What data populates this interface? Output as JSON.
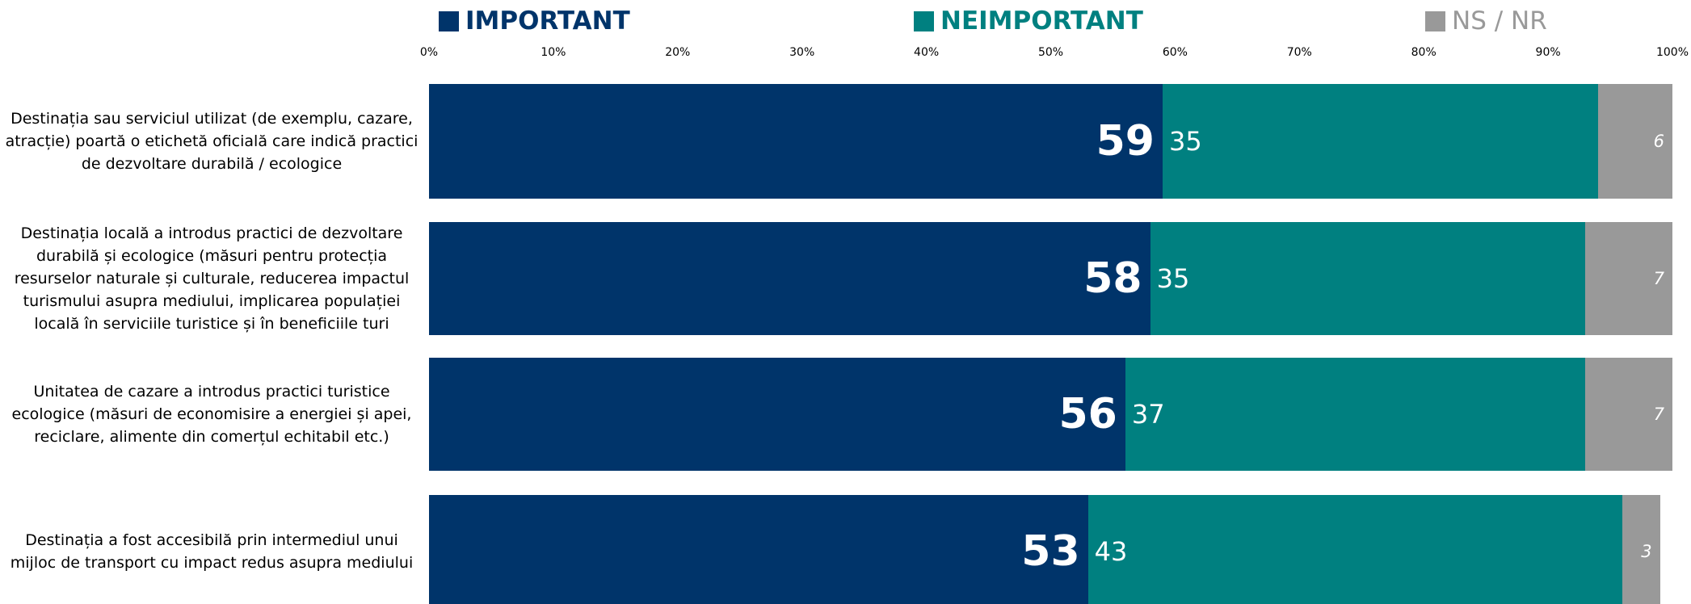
{
  "chart_data": {
    "type": "stacked-bar-horizontal",
    "categories": [
      "Destinația sau serviciul utilizat (de exemplu, cazare, atracție) poartă o etichetă oficială care indică practici de dezvoltare durabilă / ecologice",
      "Destinația locală a introdus practici de dezvoltare durabilă și ecologice (măsuri pentru protecția resurselor naturale și culturale, reducerea impactul turismului asupra mediului, implicarea populației locală în serviciile turistice și în beneficiile turi",
      "Unitatea de cazare a introdus practici turistice ecologice (măsuri de economisire a energiei și apei, reciclare, alimente din comerțul echitabil etc.)",
      "Destinația a fost accesibilă prin intermediul unui mijloc de transport cu impact redus asupra mediului"
    ],
    "series": [
      {
        "name": "IMPORTANT",
        "color": "#00346a",
        "values": [
          59,
          58,
          56,
          53
        ]
      },
      {
        "name": "NEIMPORTANT",
        "color": "#008080",
        "values": [
          35,
          35,
          37,
          43
        ]
      },
      {
        "name": "NS / NR",
        "color": "#999999",
        "values": [
          6,
          7,
          7,
          3
        ]
      }
    ],
    "xlim": [
      0,
      100
    ],
    "xticks": [
      {
        "value": 0,
        "label": "0%"
      },
      {
        "value": 10,
        "label": "10%"
      },
      {
        "value": 20,
        "label": "20%"
      },
      {
        "value": 30,
        "label": "30%"
      },
      {
        "value": 40,
        "label": "40%"
      },
      {
        "value": 50,
        "label": "50%"
      },
      {
        "value": 60,
        "label": "60%"
      },
      {
        "value": 70,
        "label": "70%"
      },
      {
        "value": 80,
        "label": "80%"
      },
      {
        "value": 90,
        "label": "90%"
      },
      {
        "value": 100,
        "label": "100%"
      }
    ]
  }
}
